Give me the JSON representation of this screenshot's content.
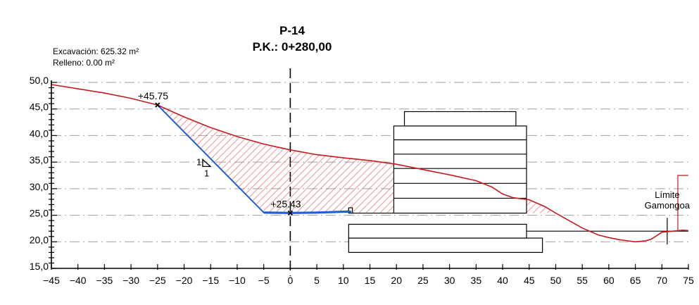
{
  "header": {
    "profile_id": "P-14",
    "station": "P.K.: 0+280,00"
  },
  "stats": {
    "excavation": "Excavación: 625.32 m²",
    "fill": "Relleno: 0.00 m²"
  },
  "chart_data": {
    "type": "cross-section",
    "x_ticks": [
      "−45",
      "−40",
      "−35",
      "−30",
      "−25",
      "−20",
      "−15",
      "−10",
      "−5",
      "0",
      "5",
      "10",
      "15",
      "20",
      "25",
      "30",
      "35",
      "40",
      "45",
      "50",
      "55",
      "60",
      "65",
      "70",
      "75"
    ],
    "y_ticks": [
      "15,0",
      "20,0",
      "25,0",
      "30,0",
      "35,0",
      "40,0",
      "45,0",
      "50,0"
    ],
    "xlim": [
      -45,
      75
    ],
    "ylim": [
      15,
      50
    ],
    "grid_y": true,
    "terrain_profile": [
      [
        -45,
        49.6
      ],
      [
        -40,
        48.8
      ],
      [
        -35,
        48.0
      ],
      [
        -30,
        47.0
      ],
      [
        -25,
        45.75
      ],
      [
        -20,
        43.5
      ],
      [
        -15,
        41.5
      ],
      [
        -10,
        39.8
      ],
      [
        -5,
        38.4
      ],
      [
        0,
        37.3
      ],
      [
        5,
        36.4
      ],
      [
        10,
        35.8
      ],
      [
        15,
        35.3
      ],
      [
        20,
        34.6
      ],
      [
        25,
        33.6
      ],
      [
        30,
        32.6
      ],
      [
        35,
        31.5
      ],
      [
        38,
        30.3
      ],
      [
        40,
        29.0
      ],
      [
        42,
        28.3
      ],
      [
        45,
        27.9
      ],
      [
        48,
        26.6
      ],
      [
        50,
        25.4
      ],
      [
        55,
        22.6
      ],
      [
        58,
        21.3
      ],
      [
        60,
        20.8
      ],
      [
        62,
        20.4
      ],
      [
        65,
        20.0
      ],
      [
        67,
        20.2
      ],
      [
        68,
        20.5
      ],
      [
        70,
        21.8
      ],
      [
        72,
        22.0
      ],
      [
        74,
        22.2
      ],
      [
        75,
        22.1
      ]
    ],
    "excavation_profile": [
      [
        -25,
        45.75
      ],
      [
        -5,
        25.5
      ],
      [
        0,
        25.43
      ],
      [
        5,
        25.5
      ],
      [
        11,
        25.7
      ],
      [
        11.5,
        25.6
      ]
    ],
    "slope_label": {
      "h": "1",
      "v": "1"
    },
    "annotations": [
      {
        "label": "+45.75",
        "x": -25,
        "y": 45.75
      },
      {
        "label": "+25.43",
        "x": 0,
        "y": 25.43
      }
    ],
    "boundary_label": [
      "Límite",
      "Gamongoa"
    ],
    "colors": {
      "terrain": "#c8191e",
      "excavation": "#1f5fd6",
      "hatch": "#e36b6b",
      "axis": "#000000",
      "grid": "#a0a0a0"
    }
  }
}
